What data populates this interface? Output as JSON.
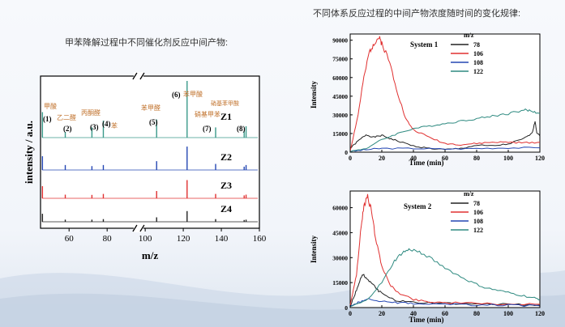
{
  "captions": {
    "left": "甲苯降解过程中不同催化剂反应中间产物:",
    "right": "不同体系反应过程的中间产物浓度随时间的变化规律:"
  },
  "chart_data": [
    {
      "type": "line",
      "title": "",
      "xlabel": "m/z",
      "ylabel": "intensity / a.u.",
      "xlim": [
        45,
        160
      ],
      "x_ticks": [
        60,
        80,
        100,
        120,
        140,
        160
      ],
      "x_break": [
        94,
        99
      ],
      "series": [
        {
          "name": "Z1",
          "color": "#3a9a8a",
          "peaks": [
            [
              46,
              0.45
            ],
            [
              58,
              0.1
            ],
            [
              72,
              0.18
            ],
            [
              78,
              0.3
            ],
            [
              106,
              0.32
            ],
            [
              122,
              1.0
            ],
            [
              137,
              0.18
            ],
            [
              152,
              0.12
            ],
            [
              153,
              0.2
            ]
          ]
        },
        {
          "name": "Z2",
          "color": "#2446b3",
          "peaks": [
            [
              46,
              0.5
            ],
            [
              58,
              0.18
            ],
            [
              72,
              0.14
            ],
            [
              78,
              0.18
            ],
            [
              106,
              0.32
            ],
            [
              122,
              0.85
            ],
            [
              137,
              0.22
            ],
            [
              152,
              0.12
            ],
            [
              153,
              0.18
            ]
          ]
        },
        {
          "name": "Z3",
          "color": "#e03030",
          "peaks": [
            [
              46,
              0.5
            ],
            [
              58,
              0.15
            ],
            [
              72,
              0.14
            ],
            [
              78,
              0.18
            ],
            [
              106,
              0.3
            ],
            [
              122,
              0.75
            ],
            [
              137,
              0.18
            ],
            [
              152,
              0.12
            ],
            [
              153,
              0.15
            ]
          ]
        },
        {
          "name": "Z4",
          "color": "#222222",
          "peaks": [
            [
              46,
              0.45
            ],
            [
              58,
              0.12
            ],
            [
              72,
              0.12
            ],
            [
              78,
              0.15
            ],
            [
              106,
              0.25
            ],
            [
              122,
              0.6
            ],
            [
              137,
              0.15
            ],
            [
              152,
              0.1
            ],
            [
              153,
              0.12
            ]
          ]
        }
      ],
      "annotations": [
        {
          "label": "(1)",
          "cn": "甲酸",
          "mz": 46
        },
        {
          "label": "(2)",
          "cn": "乙二醛",
          "mz": 58
        },
        {
          "label": "(3)",
          "cn": "丙酮醛",
          "mz": 72
        },
        {
          "label": "(4)",
          "cn": "苯",
          "mz": 78
        },
        {
          "label": "(5)",
          "cn": "苯甲醛",
          "mz": 106
        },
        {
          "label": "(6)",
          "cn": "苯甲酸",
          "mz": 122
        },
        {
          "label": "(7)",
          "cn": "硝基甲苯",
          "mz": 137
        },
        {
          "label": "(8)",
          "cn": "硝基苯甲酸",
          "mz": 153
        }
      ]
    },
    {
      "type": "line",
      "title": "System 1",
      "xlabel": "Time (min)",
      "ylabel": "Intensity",
      "xlim": [
        0,
        120
      ],
      "ylim": [
        0,
        95000
      ],
      "x_ticks": [
        0,
        20,
        40,
        60,
        80,
        100,
        120
      ],
      "y_ticks": [
        0,
        15000,
        30000,
        45000,
        60000,
        75000,
        90000
      ],
      "legend_title": "m/z",
      "series": [
        {
          "name": "78",
          "color": "#222222",
          "points": [
            [
              0,
              3000
            ],
            [
              5,
              9000
            ],
            [
              10,
              14000
            ],
            [
              15,
              12000
            ],
            [
              20,
              13500
            ],
            [
              25,
              11000
            ],
            [
              30,
              9000
            ],
            [
              40,
              5000
            ],
            [
              50,
              3000
            ],
            [
              60,
              2000
            ],
            [
              70,
              3000
            ],
            [
              80,
              5500
            ],
            [
              90,
              5000
            ],
            [
              100,
              6500
            ],
            [
              110,
              11000
            ],
            [
              115,
              15000
            ],
            [
              117,
              25000
            ],
            [
              118,
              16000
            ],
            [
              120,
              13000
            ]
          ]
        },
        {
          "name": "106",
          "color": "#e03030",
          "points": [
            [
              0,
              1000
            ],
            [
              5,
              30000
            ],
            [
              8,
              55000
            ],
            [
              12,
              80000
            ],
            [
              15,
              88000
            ],
            [
              18,
              92000
            ],
            [
              20,
              88000
            ],
            [
              25,
              72000
            ],
            [
              30,
              48000
            ],
            [
              35,
              27000
            ],
            [
              40,
              18000
            ],
            [
              50,
              12000
            ],
            [
              60,
              7000
            ],
            [
              70,
              6000
            ],
            [
              80,
              7000
            ],
            [
              90,
              8000
            ],
            [
              100,
              8000
            ],
            [
              110,
              7500
            ],
            [
              120,
              8000
            ]
          ]
        },
        {
          "name": "108",
          "color": "#2446b3",
          "points": [
            [
              0,
              500
            ],
            [
              10,
              2000
            ],
            [
              20,
              3000
            ],
            [
              40,
              3000
            ],
            [
              60,
              2500
            ],
            [
              80,
              3000
            ],
            [
              100,
              3500
            ],
            [
              120,
              3500
            ]
          ]
        },
        {
          "name": "122",
          "color": "#2e8a80",
          "points": [
            [
              0,
              500
            ],
            [
              10,
              3000
            ],
            [
              20,
              10000
            ],
            [
              30,
              15000
            ],
            [
              40,
              19000
            ],
            [
              50,
              21000
            ],
            [
              60,
              23000
            ],
            [
              70,
              25000
            ],
            [
              80,
              27000
            ],
            [
              90,
              29000
            ],
            [
              100,
              31000
            ],
            [
              110,
              34000
            ],
            [
              115,
              33000
            ],
            [
              120,
              31000
            ]
          ]
        }
      ]
    },
    {
      "type": "line",
      "title": "System 2",
      "xlabel": "Time (min)",
      "ylabel": "Intensity",
      "xlim": [
        0,
        120
      ],
      "ylim": [
        0,
        70000
      ],
      "x_ticks": [
        0,
        20,
        40,
        60,
        80,
        100,
        120
      ],
      "y_ticks": [
        0,
        15000,
        30000,
        45000,
        60000
      ],
      "legend_title": "m/z",
      "series": [
        {
          "name": "78",
          "color": "#222222",
          "points": [
            [
              0,
              1000
            ],
            [
              3,
              8000
            ],
            [
              6,
              16000
            ],
            [
              8,
              20000
            ],
            [
              10,
              18000
            ],
            [
              14,
              14000
            ],
            [
              18,
              10000
            ],
            [
              24,
              6000
            ],
            [
              30,
              4000
            ],
            [
              40,
              3000
            ],
            [
              60,
              2500
            ],
            [
              80,
              2000
            ],
            [
              100,
              2000
            ],
            [
              120,
              1500
            ]
          ]
        },
        {
          "name": "106",
          "color": "#e03030",
          "points": [
            [
              0,
              1000
            ],
            [
              4,
              20000
            ],
            [
              7,
              50000
            ],
            [
              9,
              62000
            ],
            [
              11,
              67000
            ],
            [
              13,
              60000
            ],
            [
              16,
              42000
            ],
            [
              20,
              25000
            ],
            [
              25,
              14000
            ],
            [
              30,
              9000
            ],
            [
              40,
              5000
            ],
            [
              50,
              3500
            ],
            [
              60,
              3000
            ],
            [
              80,
              2500
            ],
            [
              100,
              2000
            ],
            [
              120,
              2000
            ]
          ]
        },
        {
          "name": "108",
          "color": "#2446b3",
          "points": [
            [
              0,
              500
            ],
            [
              5,
              3000
            ],
            [
              10,
              5000
            ],
            [
              20,
              4000
            ],
            [
              30,
              3000
            ],
            [
              40,
              2500
            ],
            [
              60,
              2000
            ],
            [
              80,
              1500
            ],
            [
              100,
              1500
            ],
            [
              120,
              1000
            ]
          ]
        },
        {
          "name": "122",
          "color": "#2e8a80",
          "points": [
            [
              0,
              500
            ],
            [
              10,
              4000
            ],
            [
              20,
              15000
            ],
            [
              28,
              28000
            ],
            [
              33,
              33000
            ],
            [
              38,
              35000
            ],
            [
              45,
              33000
            ],
            [
              55,
              27000
            ],
            [
              65,
              21000
            ],
            [
              75,
              16000
            ],
            [
              85,
              12000
            ],
            [
              95,
              10000
            ],
            [
              105,
              8000
            ],
            [
              115,
              6000
            ],
            [
              120,
              5000
            ]
          ]
        }
      ]
    }
  ]
}
